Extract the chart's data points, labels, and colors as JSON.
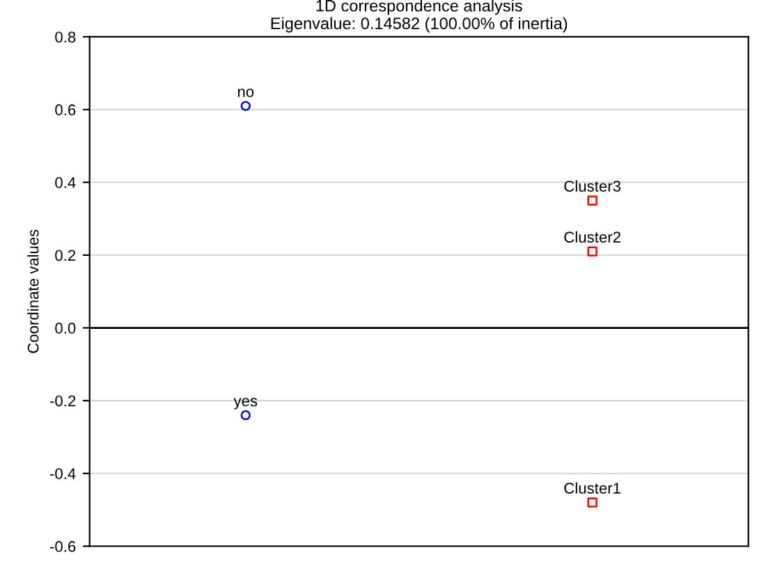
{
  "chart_data": {
    "type": "scatter",
    "title": "1D correspondence analysis",
    "subtitle": "Eigenvalue: 0.14582 (100.00% of inertia)",
    "ylabel": "Coordinate values",
    "categories": [
      null,
      null
    ],
    "series": [
      {
        "name": "no",
        "color": "#0000ff",
        "marker": "circle",
        "values": [
          0.61,
          null
        ]
      },
      {
        "name": "yes",
        "color": "#0000ff",
        "marker": "circle",
        "values": [
          -0.24,
          null
        ]
      },
      {
        "name": "Cluster3",
        "color": "#ff0000",
        "marker": "square",
        "values": [
          null,
          0.35
        ]
      },
      {
        "name": "Cluster2",
        "color": "#ff0000",
        "marker": "square",
        "values": [
          null,
          0.21
        ]
      },
      {
        "name": "Cluster1",
        "color": "#ff0000",
        "marker": "square",
        "values": [
          null,
          -0.48
        ]
      }
    ],
    "ylim": [
      -0.6,
      0.8
    ],
    "yticks": [
      -0.6,
      -0.4,
      -0.2,
      {
        "value": 0,
        "label": "0.0"
      },
      0.2,
      0.4,
      0.6,
      0.8
    ],
    "ref_lines": [
      {
        "axis": "y",
        "value": 0,
        "color": "#000000"
      }
    ],
    "grid": "y",
    "legend": false
  }
}
